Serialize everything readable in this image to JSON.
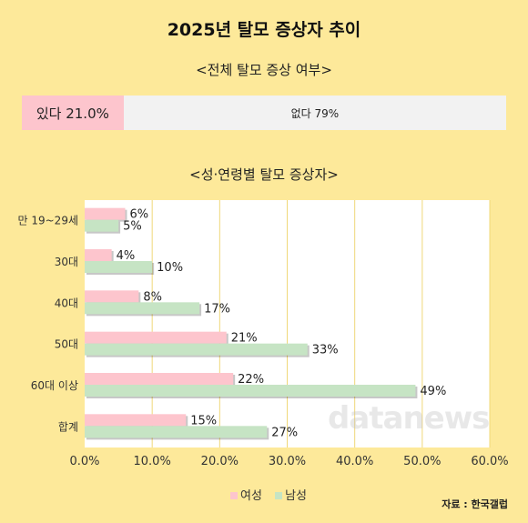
{
  "title": "2025년 탈모 증상자 추이",
  "overall": {
    "heading": "<전체 탈모 증상 여부>",
    "yes_label": "있다 21.0%",
    "no_label": "없다 79%",
    "yes_value": 21.0,
    "no_value": 79.0,
    "colors": {
      "yes": "#fdc5cd",
      "no": "#f2f2f2"
    }
  },
  "section_heading": "<성·연령별 탈모 증상자>",
  "chart_data": {
    "type": "bar",
    "orientation": "horizontal",
    "categories": [
      "만 19~29세",
      "30대",
      "40대",
      "50대",
      "60대 이상",
      "합계"
    ],
    "series": [
      {
        "name": "여성",
        "values": [
          6,
          4,
          8,
          21,
          22,
          15
        ],
        "labels": [
          "6%",
          "4%",
          "8%",
          "21%",
          "22%",
          "15%"
        ],
        "color": "#fdc5cd"
      },
      {
        "name": "남성",
        "values": [
          5,
          10,
          17,
          33,
          49,
          27
        ],
        "labels": [
          "5%",
          "10%",
          "17%",
          "33%",
          "49%",
          "27%"
        ],
        "color": "#c6e4c4"
      }
    ],
    "xlim": [
      0,
      60
    ],
    "xticks": [
      "0.0%",
      "10.0%",
      "20.0%",
      "30.0%",
      "40.0%",
      "50.0%",
      "60.0%"
    ],
    "grid": "vertical",
    "legend_position": "bottom"
  },
  "legend": {
    "female": "여성",
    "male": "남성"
  },
  "source": "자료 : 한국갤럽",
  "watermark": "datanews"
}
